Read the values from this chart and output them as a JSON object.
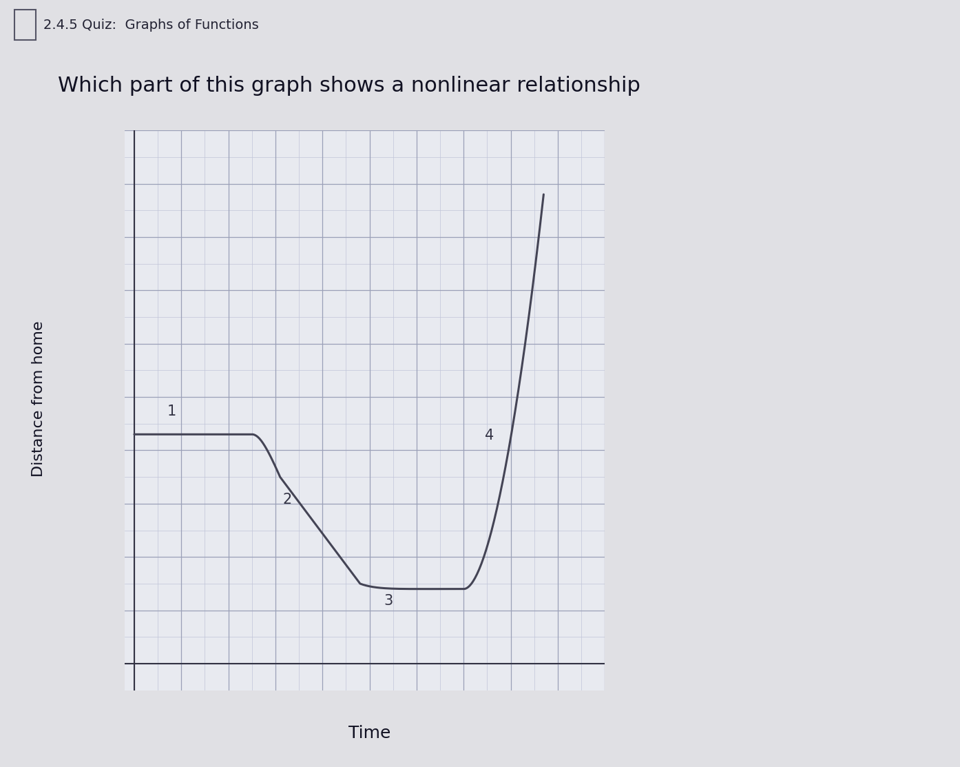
{
  "title_bar_text": "2.4.5 Quiz:  Graphs of Functions",
  "question_text": "Which part of this graph shows a nonlinear relationship",
  "xlabel": "Time",
  "ylabel": "Distance from home",
  "bg_color": "#e0e0e4",
  "plot_bg_color": "#e8eaf0",
  "grid_major_color": "#9aa0b8",
  "grid_minor_color": "#c0c4d8",
  "line_color": "#444455",
  "title_bg_color": "#c8c8d0",
  "figsize": [
    13.94,
    11.13
  ],
  "dpi": 100
}
